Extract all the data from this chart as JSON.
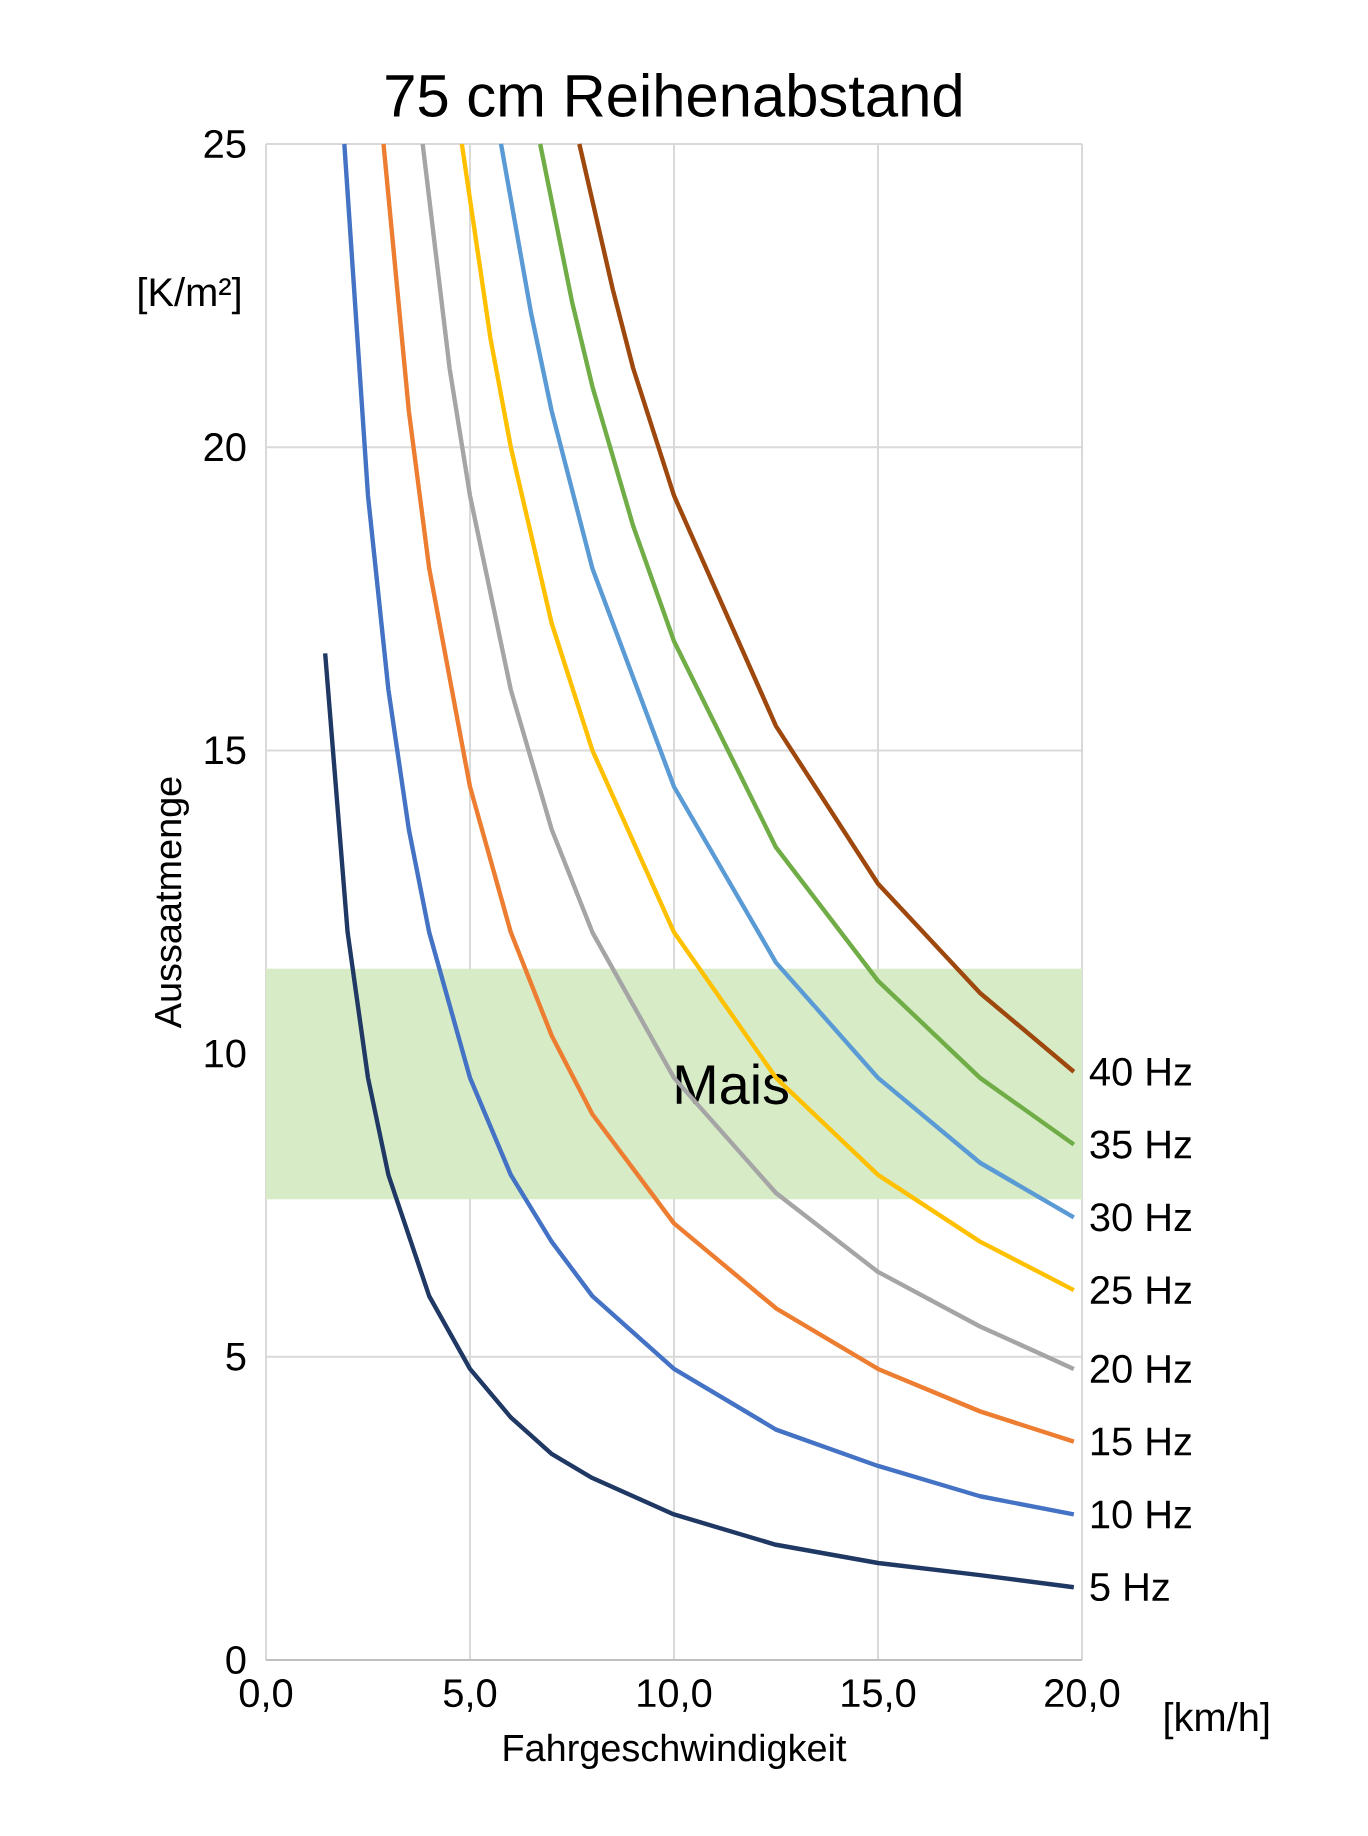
{
  "chart_data": {
    "type": "line",
    "title": "75 cm Reihenabstand",
    "xlabel": "Fahrgeschwindigkeit",
    "ylabel": "Aussaatmenge",
    "annotations": [
      "[K/m²]",
      "[km/h]"
    ],
    "xlim": [
      0,
      20
    ],
    "ylim": [
      0,
      25
    ],
    "xticks": [
      {
        "value": 0,
        "label": "0,0"
      },
      {
        "value": 5,
        "label": "5,0"
      },
      {
        "value": 10,
        "label": "10,0"
      },
      {
        "value": 15,
        "label": "15,0"
      },
      {
        "value": 20,
        "label": "20,0"
      }
    ],
    "yticks": [
      0,
      5,
      10,
      15,
      20,
      25
    ],
    "grid": true,
    "bands": [
      {
        "axis": "y",
        "from": 7.6,
        "to": 11.4,
        "label": "Mais",
        "color": "#d6ebc6"
      }
    ],
    "series": [
      {
        "name": "5 Hz",
        "color": "#203864",
        "x": [
          1.45,
          2,
          2.5,
          3,
          4,
          5,
          6,
          7,
          8,
          10,
          12.5,
          15,
          17.5,
          19.8
        ],
        "values": [
          16.6,
          12,
          9.6,
          8,
          6,
          4.8,
          4,
          3.4,
          3,
          2.4,
          1.9,
          1.6,
          1.4,
          1.2
        ]
      },
      {
        "name": "10 Hz",
        "color": "#4472c4",
        "x": [
          1.92,
          2.5,
          3,
          3.5,
          4,
          5,
          6,
          7,
          8,
          10,
          12.5,
          15,
          17.5,
          19.8
        ],
        "values": [
          25,
          19.2,
          16,
          13.7,
          12,
          9.6,
          8,
          6.9,
          6,
          4.8,
          3.8,
          3.2,
          2.7,
          2.4
        ]
      },
      {
        "name": "15 Hz",
        "color": "#ed7d31",
        "x": [
          2.88,
          3.5,
          4,
          5,
          6,
          7,
          8,
          10,
          12.5,
          15,
          17.5,
          19.8
        ],
        "values": [
          25,
          20.6,
          18,
          14.4,
          12,
          10.3,
          9,
          7.2,
          5.8,
          4.8,
          4.1,
          3.6
        ]
      },
      {
        "name": "20 Hz",
        "color": "#a5a5a5",
        "x": [
          3.84,
          4.5,
          5,
          6,
          7,
          8,
          10,
          12.5,
          15,
          17.5,
          19.8
        ],
        "values": [
          25,
          21.3,
          19.2,
          16,
          13.7,
          12,
          9.6,
          7.7,
          6.4,
          5.5,
          4.8
        ]
      },
      {
        "name": "25 Hz",
        "color": "#ffc000",
        "x": [
          4.8,
          5.5,
          6,
          7,
          8,
          10,
          12.5,
          15,
          17.5,
          19.8
        ],
        "values": [
          25,
          21.8,
          20,
          17.1,
          15,
          12,
          9.6,
          8,
          6.9,
          6.1
        ]
      },
      {
        "name": "30 Hz",
        "color": "#5b9bd5",
        "x": [
          5.76,
          6.5,
          7,
          8,
          10,
          12.5,
          15,
          17.5,
          19.8
        ],
        "values": [
          25,
          22.2,
          20.6,
          18,
          14.4,
          11.5,
          9.6,
          8.2,
          7.3
        ]
      },
      {
        "name": "35 Hz",
        "color": "#70ad47",
        "x": [
          6.72,
          7.5,
          8,
          9,
          10,
          12.5,
          15,
          17.5,
          19.8
        ],
        "values": [
          25,
          22.4,
          21,
          18.7,
          16.8,
          13.4,
          11.2,
          9.6,
          8.5
        ]
      },
      {
        "name": "40 Hz",
        "color": "#9e480e",
        "x": [
          7.68,
          8.5,
          9,
          10,
          12.5,
          15,
          17.5,
          19.8
        ],
        "values": [
          25,
          22.6,
          21.3,
          19.2,
          15.4,
          12.8,
          11,
          9.7
        ]
      }
    ]
  }
}
